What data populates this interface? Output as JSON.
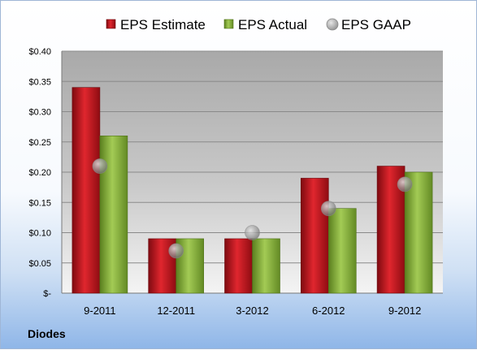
{
  "company": "Diodes",
  "chart_data": {
    "type": "bar",
    "categories": [
      "9-2011",
      "12-2011",
      "3-2012",
      "6-2012",
      "9-2012"
    ],
    "series": [
      {
        "name": "EPS Estimate",
        "values": [
          0.34,
          0.09,
          0.09,
          0.19,
          0.21
        ],
        "color": "#c0141c"
      },
      {
        "name": "EPS Actual",
        "values": [
          0.26,
          0.09,
          0.09,
          0.14,
          0.2
        ],
        "color": "#8ab43c"
      }
    ],
    "markers": {
      "name": "EPS GAAP",
      "values": [
        0.21,
        0.07,
        0.1,
        0.14,
        0.18
      ],
      "color": "#9a9a9a"
    },
    "ylim": [
      0,
      0.4
    ],
    "y_ticks": [
      {
        "value": 0.4,
        "label": "$0.40"
      },
      {
        "value": 0.35,
        "label": "$0.35"
      },
      {
        "value": 0.3,
        "label": "$0.30"
      },
      {
        "value": 0.25,
        "label": "$0.25"
      },
      {
        "value": 0.2,
        "label": "$0.20"
      },
      {
        "value": 0.15,
        "label": "$0.15"
      },
      {
        "value": 0.1,
        "label": "$0.10"
      },
      {
        "value": 0.05,
        "label": "$0.05"
      },
      {
        "value": 0.0,
        "label": "$-"
      }
    ],
    "grid": true,
    "legend_position": "top"
  }
}
